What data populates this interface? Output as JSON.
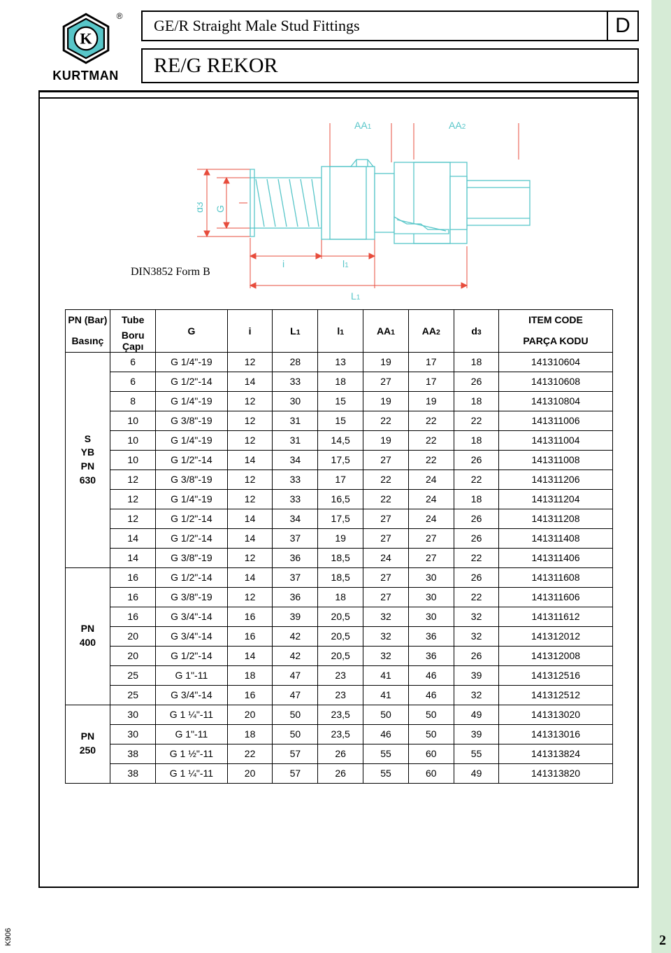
{
  "header": {
    "brand": "KURTMAN",
    "title1": "GE/R  Straight Male Stud Fittings",
    "title2": "RE/G  REKOR",
    "corner": "D"
  },
  "diagram": {
    "din_label": "DIN3852 Form B",
    "labels": {
      "aa1": "AA1",
      "aa2": "AA2",
      "d3": "d3",
      "g": "G",
      "i": "i",
      "l1_small": "l1",
      "L1": "L1"
    },
    "colors": {
      "outline": "#58c6c9",
      "dash": "#e74c3c",
      "fill": "#ffffff"
    }
  },
  "table": {
    "head": {
      "pn_top": "PN (Bar)",
      "pn_bot": "Basınç",
      "tube_top": "Tube",
      "tube_bot": "Boru Çapı",
      "g": "G",
      "i": "i",
      "L1": "L",
      "l1": "l",
      "aa1": "AA",
      "aa2": "AA",
      "d3": "d",
      "code_top": "ITEM CODE",
      "code_bot": "PARÇA KODU"
    },
    "groups": [
      {
        "label": "S\nYB\nPN\n630",
        "rows": [
          [
            "6",
            "G 1/4\"-19",
            "12",
            "28",
            "13",
            "19",
            "17",
            "18",
            "141310604"
          ],
          [
            "6",
            "G 1/2\"-14",
            "14",
            "33",
            "18",
            "27",
            "17",
            "26",
            "141310608"
          ],
          [
            "8",
            "G 1/4\"-19",
            "12",
            "30",
            "15",
            "19",
            "19",
            "18",
            "141310804"
          ],
          [
            "10",
            "G 3/8\"-19",
            "12",
            "31",
            "15",
            "22",
            "22",
            "22",
            "141311006"
          ],
          [
            "10",
            "G 1/4\"-19",
            "12",
            "31",
            "14,5",
            "19",
            "22",
            "18",
            "141311004"
          ],
          [
            "10",
            "G 1/2\"-14",
            "14",
            "34",
            "17,5",
            "27",
            "22",
            "26",
            "141311008"
          ],
          [
            "12",
            "G 3/8\"-19",
            "12",
            "33",
            "17",
            "22",
            "24",
            "22",
            "141311206"
          ],
          [
            "12",
            "G 1/4\"-19",
            "12",
            "33",
            "16,5",
            "22",
            "24",
            "18",
            "141311204"
          ],
          [
            "12",
            "G 1/2\"-14",
            "14",
            "34",
            "17,5",
            "27",
            "24",
            "26",
            "141311208"
          ],
          [
            "14",
            "G 1/2\"-14",
            "14",
            "37",
            "19",
            "27",
            "27",
            "26",
            "141311408"
          ],
          [
            "14",
            "G 3/8\"-19",
            "12",
            "36",
            "18,5",
            "24",
            "27",
            "22",
            "141311406"
          ]
        ]
      },
      {
        "label": "PN\n400",
        "rows": [
          [
            "16",
            "G 1/2\"-14",
            "14",
            "37",
            "18,5",
            "27",
            "30",
            "26",
            "141311608"
          ],
          [
            "16",
            "G 3/8\"-19",
            "12",
            "36",
            "18",
            "27",
            "30",
            "22",
            "141311606"
          ],
          [
            "16",
            "G 3/4\"-14",
            "16",
            "39",
            "20,5",
            "32",
            "30",
            "32",
            "141311612"
          ],
          [
            "20",
            "G 3/4\"-14",
            "16",
            "42",
            "20,5",
            "32",
            "36",
            "32",
            "141312012"
          ],
          [
            "20",
            "G 1/2\"-14",
            "14",
            "42",
            "20,5",
            "32",
            "36",
            "26",
            "141312008"
          ],
          [
            "25",
            "G 1\"-11",
            "18",
            "47",
            "23",
            "41",
            "46",
            "39",
            "141312516"
          ],
          [
            "25",
            "G 3/4\"-14",
            "16",
            "47",
            "23",
            "41",
            "46",
            "32",
            "141312512"
          ]
        ]
      },
      {
        "label": "PN\n250",
        "rows": [
          [
            "30",
            "G 1 ¼\"-11",
            "20",
            "50",
            "23,5",
            "50",
            "50",
            "49",
            "141313020"
          ],
          [
            "30",
            "G 1\"-11",
            "18",
            "50",
            "23,5",
            "46",
            "50",
            "39",
            "141313016"
          ],
          [
            "38",
            "G 1 ½\"-11",
            "22",
            "57",
            "26",
            "55",
            "60",
            "55",
            "141313824"
          ],
          [
            "38",
            "G 1 ¼\"-11",
            "20",
            "57",
            "26",
            "55",
            "60",
            "49",
            "141313820"
          ]
        ]
      }
    ]
  },
  "footer": {
    "page": "2",
    "side_code": "K906"
  }
}
